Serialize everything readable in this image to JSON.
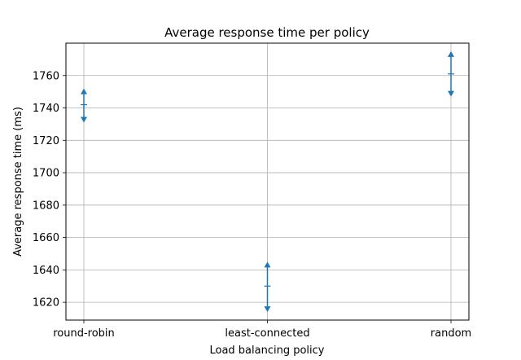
{
  "chart_data": {
    "type": "scatter",
    "title": "Average response time per policy",
    "xlabel": "Load balancing policy",
    "ylabel": "Average response time (ms)",
    "categories": [
      "round-robin",
      "least-connected",
      "random"
    ],
    "series": [
      {
        "values": [
          1742,
          1630,
          1761
        ],
        "lower": [
          1732,
          1615,
          1748
        ],
        "upper": [
          1751,
          1644,
          1774
        ]
      }
    ],
    "ylim": [
      1609,
      1780
    ],
    "yticks": [
      1620,
      1640,
      1660,
      1680,
      1700,
      1720,
      1740,
      1760
    ],
    "grid": true,
    "color": "#1f77b4"
  }
}
